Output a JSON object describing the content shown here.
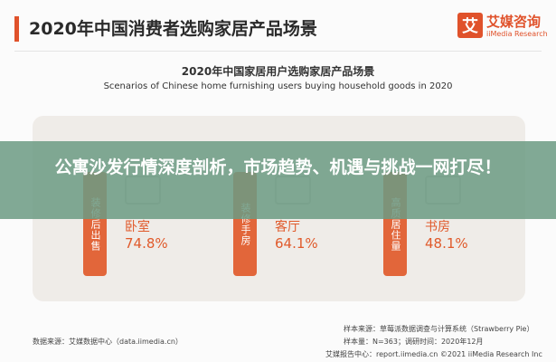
{
  "header": {
    "title": "2020年中国消费者选购家居产品场景"
  },
  "logo": {
    "mark": "艾",
    "name": "艾媒咨询",
    "sub": "iiMedia Research"
  },
  "chart_data": {
    "type": "table",
    "title": "2020年中国家居用户选购家居产品场景",
    "subtitle": "Scenarios of Chinese home furnishing users buying household goods in 2020",
    "categories": [
      "卧室",
      "客厅",
      "书房"
    ],
    "values": [
      74.8,
      64.1,
      48.1
    ],
    "value_labels": [
      "74.8%",
      "64.1%",
      "48.1%"
    ],
    "bar_labels": [
      "装修后出售",
      "装修手房",
      "高质居住量"
    ]
  },
  "footer": {
    "source": "数据来源：艾媒数据中心（data.iimedia.cn）",
    "sample_source": "样本来源：草莓派数据调查与计算系统（Strawberry Pie）",
    "sample_size": "样本量：N=363；调研时间：2020年12月",
    "copyright": "艾媒报告中心：report.iimedia.cn  ©2021  iiMedia Research Inc"
  },
  "banner": {
    "text": "公寓沙发行情深度剖析，市场趋势、机遇与挑战一网打尽！"
  }
}
